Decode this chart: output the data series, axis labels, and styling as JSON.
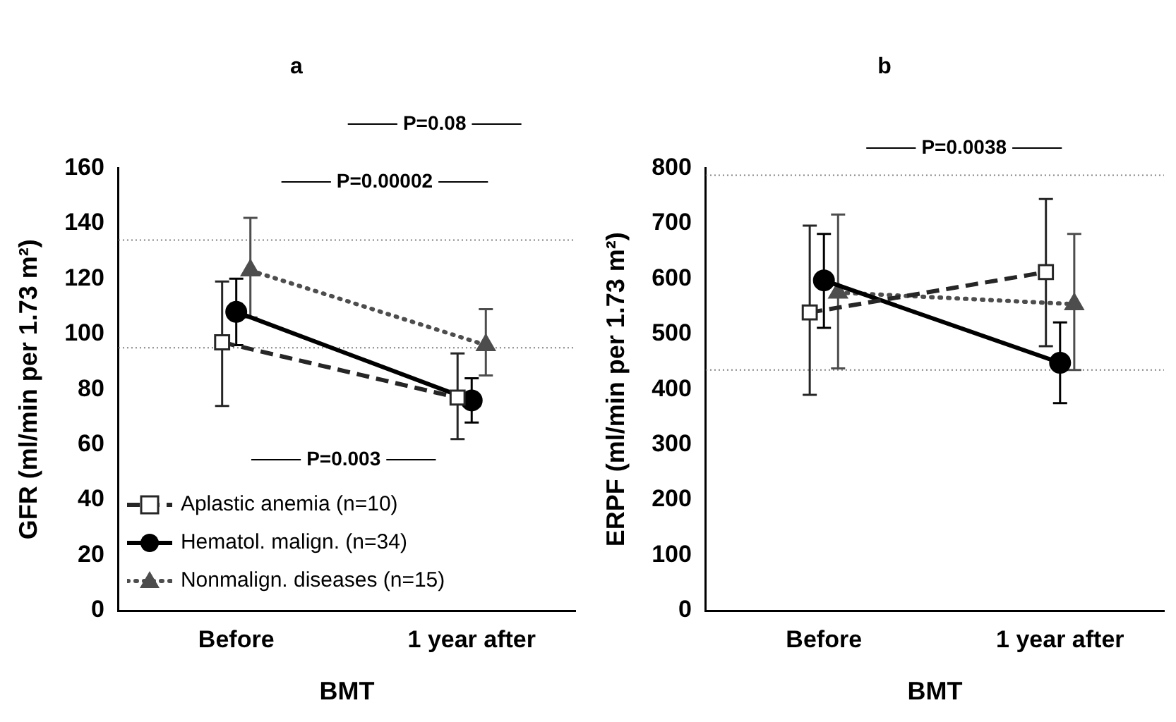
{
  "chart_data": [
    {
      "type": "line",
      "title": "a",
      "xlabel": "BMT",
      "ylabel": "GFR (ml/min per 1.73 m²)",
      "categories": [
        "Before",
        "1 year after"
      ],
      "ylim": [
        0,
        160
      ],
      "yticks": [
        0,
        20,
        40,
        60,
        80,
        100,
        120,
        140,
        160
      ],
      "grid": false,
      "legend": "bottom left",
      "series": [
        {
          "name": "Aplastic anemia (n=10)",
          "color": "#262626",
          "marker": "square",
          "line_style": "dashed",
          "values": [
            97,
            77
          ],
          "errors": [
            [
              74,
              119
            ],
            [
              62,
              93
            ]
          ]
        },
        {
          "name": "Hematol. malign. (n=34)",
          "color": "#000000",
          "marker": "circle",
          "line_style": "solid",
          "values": [
            108,
            76
          ],
          "errors": [
            [
              96,
              120
            ],
            [
              68,
              84
            ]
          ]
        },
        {
          "name": "Nonmalign. diseases (n=15)",
          "color": "#4d4d4d",
          "marker": "triangle",
          "line_style": "dotted",
          "values": [
            123,
            96
          ],
          "errors": [
            [
              106,
              142
            ],
            [
              85,
              109
            ]
          ]
        }
      ],
      "ref_lines": [
        {
          "axis": "y",
          "value": 134,
          "line_style": "dotted",
          "color": "#808080"
        },
        {
          "axis": "y",
          "value": 95,
          "line_style": "dotted",
          "color": "#808080"
        }
      ],
      "annotations": [
        "P=0.08",
        "P=0.00002",
        "P=0.003"
      ]
    },
    {
      "type": "line",
      "title": "b",
      "xlabel": "BMT",
      "ylabel": "ERPF (ml/min per 1.73 m²)",
      "categories": [
        "Before",
        "1 year after"
      ],
      "ylim": [
        0,
        800
      ],
      "yticks": [
        0,
        100,
        200,
        300,
        400,
        500,
        600,
        700,
        800
      ],
      "grid": false,
      "series": [
        {
          "color": "#262626",
          "marker": "square",
          "line_style": "dashed",
          "values": [
            539,
            612
          ],
          "errors": [
            [
              390,
              696
            ],
            [
              478,
              744
            ]
          ]
        },
        {
          "color": "#000000",
          "marker": "circle",
          "line_style": "solid",
          "values": [
            597,
            448
          ],
          "errors": [
            [
              511,
              681
            ],
            [
              375,
              521
            ]
          ]
        },
        {
          "color": "#4d4d4d",
          "marker": "triangle",
          "line_style": "dotted",
          "values": [
            575,
            554
          ],
          "errors": [
            [
              438,
              716
            ],
            [
              435,
              681
            ]
          ]
        }
      ],
      "ref_lines": [
        {
          "axis": "y",
          "value": 787,
          "line_style": "dotted",
          "color": "#808080"
        },
        {
          "axis": "y",
          "value": 435,
          "line_style": "dotted",
          "color": "#808080"
        }
      ],
      "annotations": [
        "P=0.0038"
      ]
    }
  ]
}
